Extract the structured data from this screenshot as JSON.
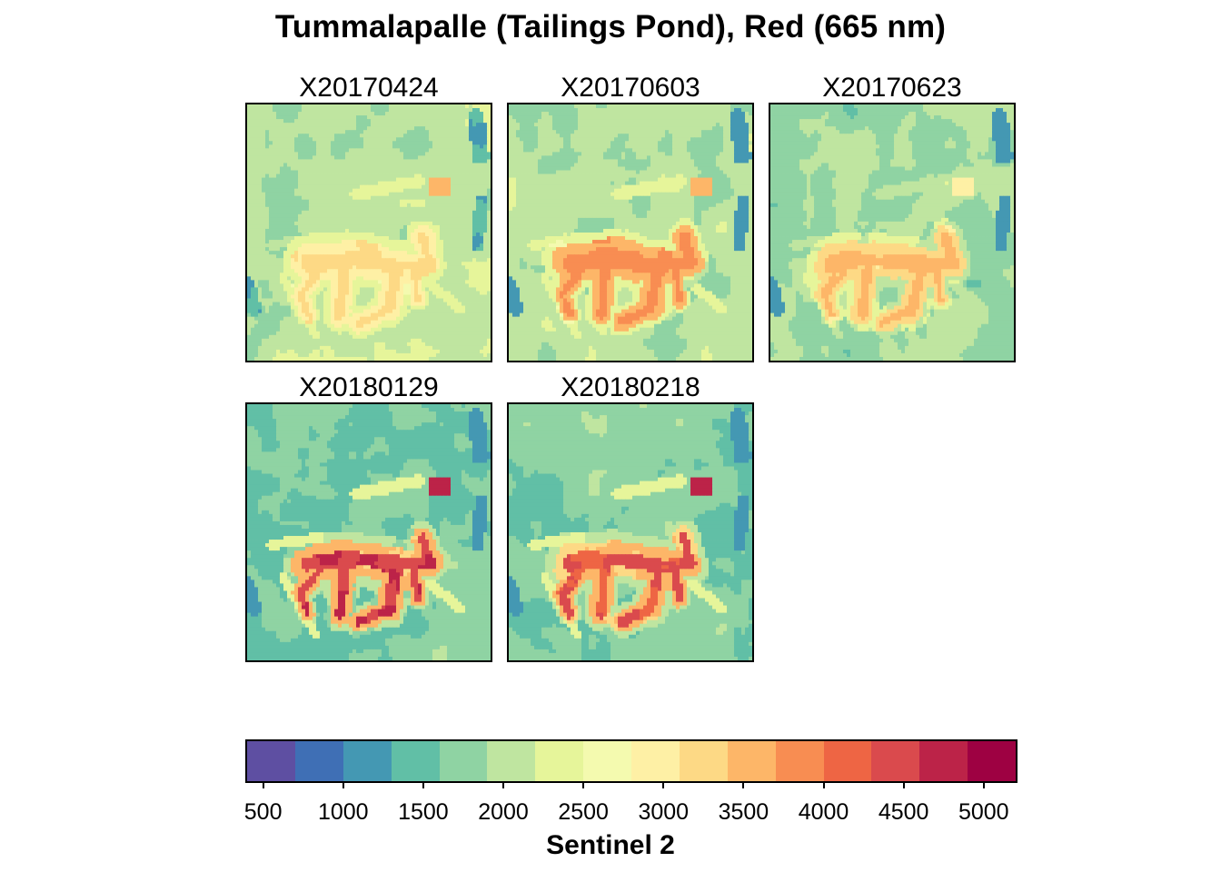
{
  "chart_data": {
    "type": "heatmap",
    "title": "Tummalapalle (Tailings Pond), Red (665 nm)",
    "legend_title": "Sentinel 2",
    "legend_placement": "bottom",
    "colorbar": {
      "breaks": [
        400,
        700,
        1000,
        1300,
        1600,
        1900,
        2200,
        2500,
        2800,
        3100,
        3400,
        3700,
        4000,
        4300,
        4600,
        4900,
        5200
      ],
      "colors": [
        "#5E4FA2",
        "#3F6FB5",
        "#4498B3",
        "#61BFA6",
        "#8FD3A3",
        "#BFE5A0",
        "#E6F59A",
        "#F4FAAF",
        "#FEF0A5",
        "#FDD985",
        "#FDB668",
        "#F88D52",
        "#EE6544",
        "#DA4A4D",
        "#BC2348",
        "#9E0142"
      ],
      "ticks": [
        500,
        1000,
        1500,
        2000,
        2500,
        3000,
        3500,
        4000,
        4500,
        5000
      ],
      "tick_labels": [
        "500",
        "1000",
        "1500",
        "2000",
        "2500",
        "3000",
        "3500",
        "4000",
        "4500",
        "5000"
      ]
    },
    "panels": [
      {
        "name": "X20170424",
        "base": 2050,
        "pond": 3050,
        "pond_core": 3250,
        "water": 1300,
        "bright_box": 3500,
        "gullies": 2400
      },
      {
        "name": "X20170603",
        "base": 2000,
        "pond": 3600,
        "pond_core": 3850,
        "water": 1150,
        "bright_box": 3400,
        "gullies": 2500
      },
      {
        "name": "X20170623",
        "base": 1850,
        "pond": 3250,
        "pond_core": 3500,
        "water": 1100,
        "bright_box": 3000,
        "gullies": 2300
      },
      {
        "name": "X20180129",
        "base": 1600,
        "pond": 3500,
        "pond_core": 4600,
        "water": 1050,
        "bright_box": 4700,
        "gullies": 2900
      },
      {
        "name": "X20180218",
        "base": 1700,
        "pond": 3450,
        "pond_core": 4300,
        "water": 1050,
        "bright_box": 4600,
        "gullies": 2800
      }
    ]
  }
}
